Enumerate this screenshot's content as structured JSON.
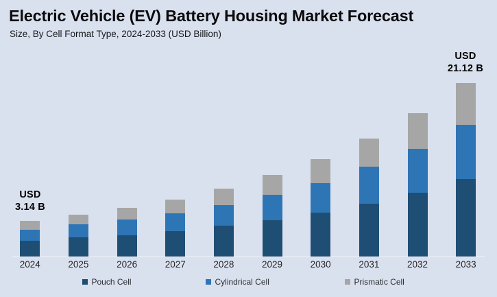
{
  "header": {
    "title": "Electric Vehicle (EV) Battery Housing Market Forecast",
    "subtitle": "Size, By Cell Format Type, 2024-2033 (USD Billion)"
  },
  "chart_data": {
    "type": "bar",
    "stacked": true,
    "unit": "USD Billion",
    "title": "Electric Vehicle (EV) Battery Housing Market Forecast",
    "subtitle": "Size, By Cell Format Type, 2024-2033 (USD Billion)",
    "categories": [
      "2024",
      "2025",
      "2026",
      "2027",
      "2028",
      "2029",
      "2030",
      "2031",
      "2032",
      "2033"
    ],
    "series": [
      {
        "name": "Pouch Cell",
        "color": "#1f4e74",
        "values": [
          1.4,
          1.79,
          2.09,
          2.62,
          3.31,
          4.04,
          5.01,
          6.2,
          7.63,
          9.46
        ]
      },
      {
        "name": "Cylindrical Cell",
        "color": "#2e75b6",
        "values": [
          0.96,
          1.2,
          1.55,
          1.86,
          2.26,
          2.83,
          3.43,
          4.34,
          5.31,
          6.6
        ]
      },
      {
        "name": "Prismatic Cell",
        "color": "#a6a6a6",
        "values": [
          0.78,
          0.89,
          1.16,
          1.46,
          1.77,
          2.21,
          2.78,
          3.33,
          4.21,
          5.06
        ]
      }
    ],
    "totals": [
      3.14,
      3.88,
      4.8,
      5.94,
      7.34,
      9.08,
      11.22,
      13.87,
      17.15,
      21.12
    ],
    "annotations": [
      {
        "category": "2024",
        "lines": [
          "USD",
          "3.14 B"
        ],
        "value": 3.14
      },
      {
        "category": "2033",
        "lines": [
          "USD",
          "21.12 B"
        ],
        "value": 21.12
      }
    ],
    "legend_position": "bottom",
    "grid": false,
    "xlabel": "",
    "ylabel": "",
    "ylim": [
      0,
      22
    ]
  },
  "colors": {
    "background": "#dae1ee",
    "axis_line": "#f0f3f9",
    "pouch_cell": "#1f4e74",
    "cylindrical_cell": "#2e75b6",
    "prismatic_cell": "#a6a6a6",
    "title_text": "#0b0b0d",
    "label_text": "#242528"
  }
}
